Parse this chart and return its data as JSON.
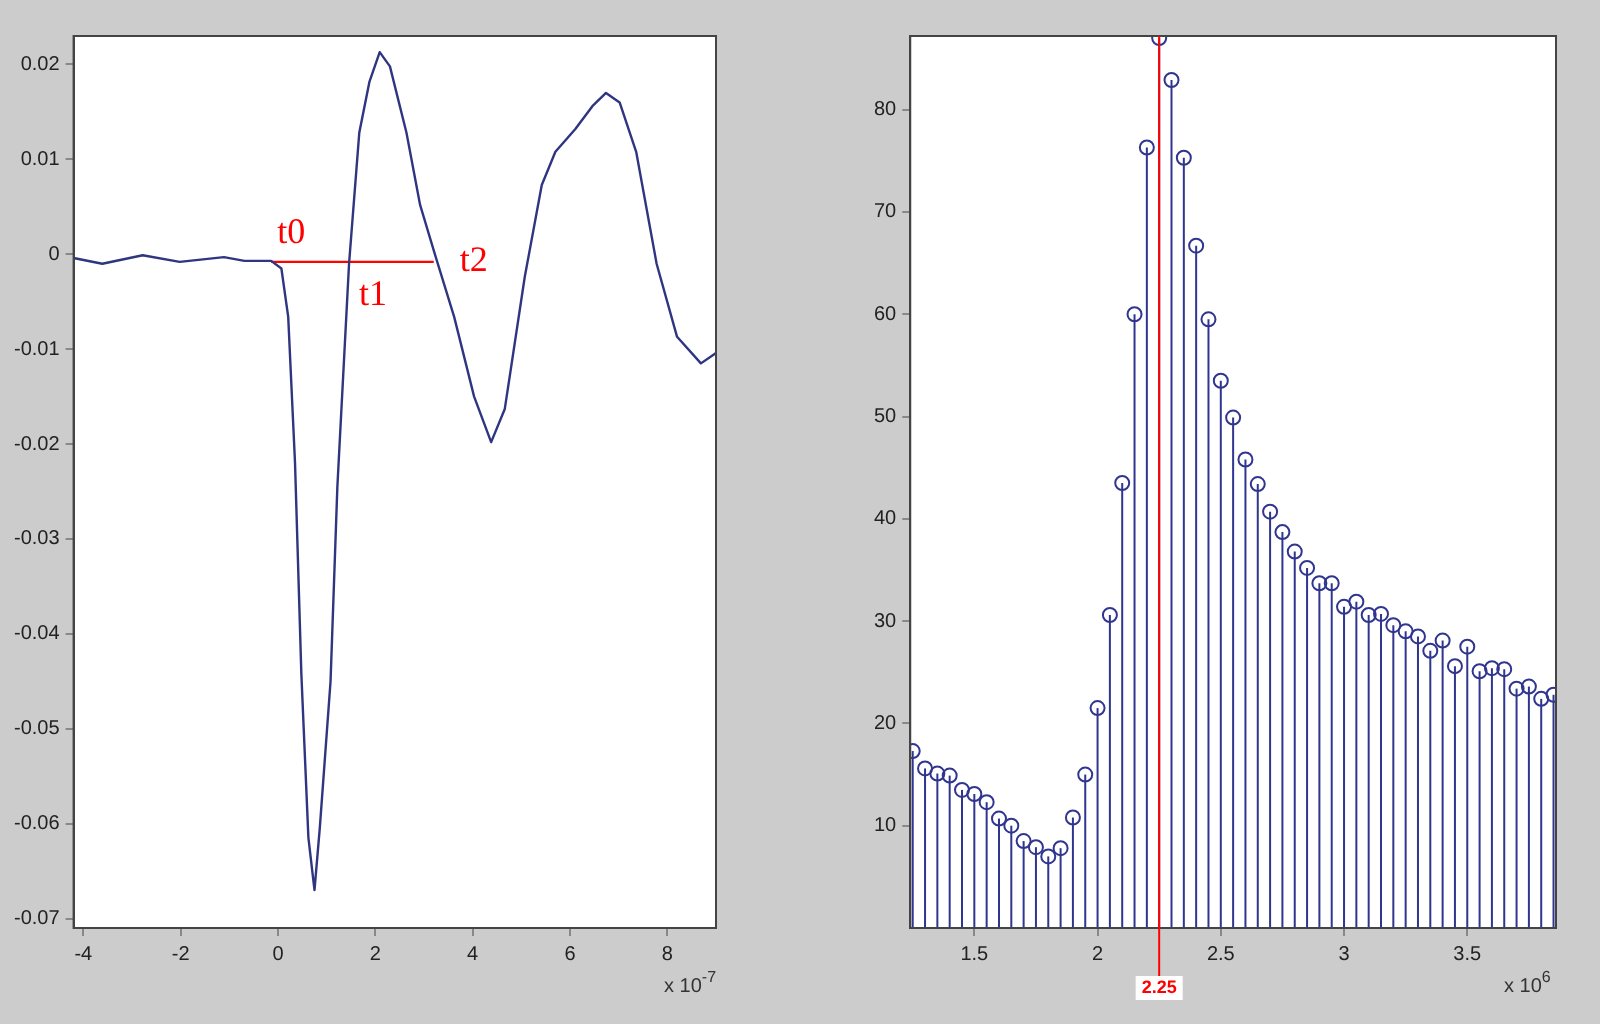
{
  "chart_data": [
    {
      "type": "line",
      "xlim": [
        -4.2,
        9
      ],
      "xticks": [
        -4,
        -2,
        0,
        2,
        4,
        6,
        8
      ],
      "ylim": [
        -0.071,
        0.023
      ],
      "yticks": [
        -0.07,
        -0.06,
        -0.05,
        -0.04,
        -0.03,
        -0.02,
        -0.01,
        0,
        0.01,
        0.02
      ],
      "grid": false,
      "legend": false,
      "marker": "none",
      "line_style": "solid",
      "series": [
        {
          "color": "#2f3580",
          "x": [
            -4.2,
            -3.61,
            -2.78,
            -2.02,
            -1.11,
            -0.69,
            -0.14,
            0.07,
            0.21,
            0.35,
            0.48,
            0.625,
            0.75,
            0.86,
            1.08,
            1.22,
            1.46,
            1.67,
            1.88,
            2.09,
            2.3,
            2.64,
            2.92,
            3.2,
            3.62,
            4.03,
            4.38,
            4.66,
            5.07,
            5.42,
            5.7,
            6.11,
            6.46,
            6.74,
            7.02,
            7.36,
            7.78,
            8.2,
            8.69,
            9
          ],
          "values": [
            -0.0004,
            -0.001,
            -0.0001,
            -0.0008,
            -0.0003,
            -0.0007,
            -0.0007,
            -0.0015,
            -0.0066,
            -0.022,
            -0.0442,
            -0.0615,
            -0.067,
            -0.0604,
            -0.045,
            -0.0245,
            -0.001,
            0.0128,
            0.0182,
            0.0213,
            0.0198,
            0.0128,
            0.0052,
            0.0004,
            -0.0066,
            -0.015,
            -0.0198,
            -0.0163,
            -0.0024,
            0.0073,
            0.0108,
            0.0132,
            0.0156,
            0.017,
            0.016,
            0.0108,
            -0.001,
            -0.0087,
            -0.0115,
            -0.0104
          ]
        },
        {
          "color": "#ff0000",
          "x": [
            -0.14,
            3.2
          ],
          "values": [
            -0.0008,
            -0.0008
          ]
        }
      ],
      "annotations": [
        {
          "text": "t0",
          "x": -0.14,
          "y": -0.0008
        },
        {
          "text": "t1",
          "x": 1.46,
          "y": -0.001
        },
        {
          "text": "t2",
          "x": 3.2,
          "y": -0.0008
        },
        "x 10$^{-7}$"
      ]
    },
    {
      "type": "lollipop",
      "xlim": [
        1.24,
        3.86
      ],
      "xticks": [
        1.5,
        2,
        2.5,
        3,
        3.5
      ],
      "ylim": [
        0,
        87.2
      ],
      "yticks": [
        10,
        20,
        30,
        40,
        50,
        60,
        70,
        80
      ],
      "grid": false,
      "legend": false,
      "marker": "circle",
      "series": [
        {
          "color": "#30358f",
          "x": [
            1.25,
            1.3,
            1.35,
            1.4,
            1.45,
            1.5,
            1.55,
            1.6,
            1.65,
            1.7,
            1.75,
            1.8,
            1.85,
            1.9,
            1.95,
            2,
            2.05,
            2.1,
            2.15,
            2.2,
            2.25,
            2.3,
            2.35,
            2.4,
            2.45,
            2.5,
            2.55,
            2.6,
            2.65,
            2.7,
            2.75,
            2.8,
            2.85,
            2.9,
            2.95,
            3,
            3.05,
            3.1,
            3.15,
            3.2,
            3.25,
            3.3,
            3.35,
            3.4,
            3.45,
            3.5,
            3.55,
            3.6,
            3.65,
            3.7,
            3.75,
            3.8,
            3.85
          ],
          "values": [
            17.3,
            15.6,
            15.1,
            14.9,
            13.5,
            13.1,
            12.3,
            10.7,
            10,
            8.5,
            7.9,
            7,
            7.8,
            10.8,
            15,
            21.5,
            30.6,
            43.5,
            60,
            76.3,
            87,
            82.9,
            75.3,
            66.7,
            59.5,
            53.5,
            49.9,
            45.8,
            43.4,
            40.7,
            38.7,
            36.8,
            35.2,
            33.7,
            33.7,
            31.4,
            31.9,
            30.6,
            30.7,
            29.6,
            29,
            28.5,
            27.1,
            28.1,
            25.6,
            27.5,
            25.1,
            25.4,
            25.3,
            23.4,
            23.6,
            22.4,
            22.8
          ]
        }
      ],
      "ref_lines": [
        {
          "axis": "x",
          "value": 2.25,
          "label": "2.25",
          "color": "#ff0000"
        }
      ],
      "annotations": [
        "x 10$^{6}$"
      ]
    }
  ]
}
